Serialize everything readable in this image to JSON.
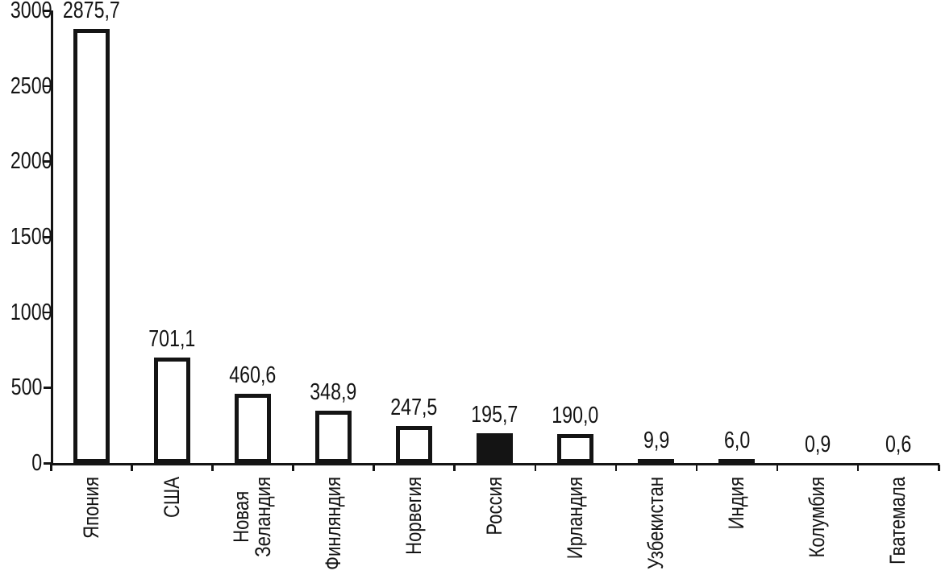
{
  "chart_data": {
    "type": "bar",
    "title": "",
    "categories": [
      "Япония",
      "США",
      "Новая\nЗеландия",
      "Финляндия",
      "Норвегия",
      "Россия",
      "Ирландия",
      "Узбекистан",
      "Индия",
      "Колумбия",
      "Гватемала"
    ],
    "values": [
      2875.7,
      701.1,
      460.6,
      348.9,
      247.5,
      195.7,
      190.0,
      9.9,
      6.0,
      0.9,
      0.6
    ],
    "value_labels": [
      "2875,7",
      "701,1",
      "460,6",
      "348,9",
      "247,5",
      "195,7",
      "190,0",
      "9,9",
      "6,0",
      "0,9",
      "0,6"
    ],
    "xlabel": "",
    "ylabel": "",
    "ylim": [
      0,
      3000
    ],
    "ytick_step": 500,
    "ytick_labels": [
      "0",
      "500",
      "1000",
      "1500",
      "2000",
      "2500",
      "3000"
    ],
    "highlighted_index": 5,
    "highlighted_category": "Россия",
    "grid": false,
    "legend_position": "none",
    "colors": {
      "bar_fill": "#ffffff",
      "bar_stroke": "#141414",
      "highlight_fill": "#141414",
      "axis": "#141414",
      "text": "#141414",
      "background": "#ffffff"
    }
  }
}
